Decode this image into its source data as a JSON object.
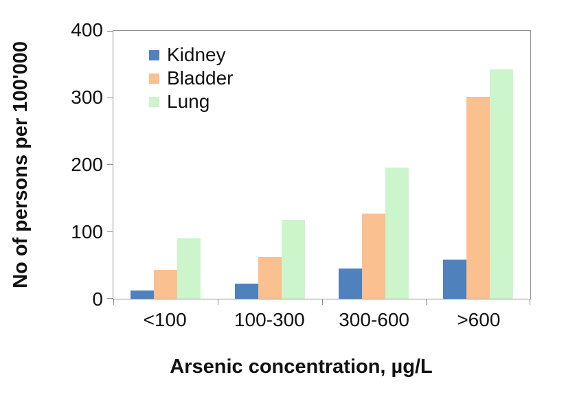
{
  "chart_data": {
    "type": "bar",
    "title": "",
    "categories": [
      "<100",
      "100-300",
      "300-600",
      ">600"
    ],
    "series": [
      {
        "name": "Kidney",
        "color": "#4f81bd",
        "values": [
          12,
          23,
          45,
          58
        ]
      },
      {
        "name": "Bladder",
        "color": "#fac090",
        "values": [
          43,
          63,
          127,
          302
        ]
      },
      {
        "name": "Lung",
        "color": "#ccf5cc",
        "values": [
          90,
          118,
          196,
          343
        ]
      }
    ],
    "xlabel": "Arsenic concentration, µg/L",
    "ylabel": "No of persons per 100'000",
    "ylim": [
      0,
      400
    ],
    "yticks": [
      0,
      100,
      200,
      300,
      400
    ],
    "legend_position": "top-left-inside",
    "grid": false,
    "axis_color": "#8e8e8e",
    "text_color": "#111111"
  }
}
